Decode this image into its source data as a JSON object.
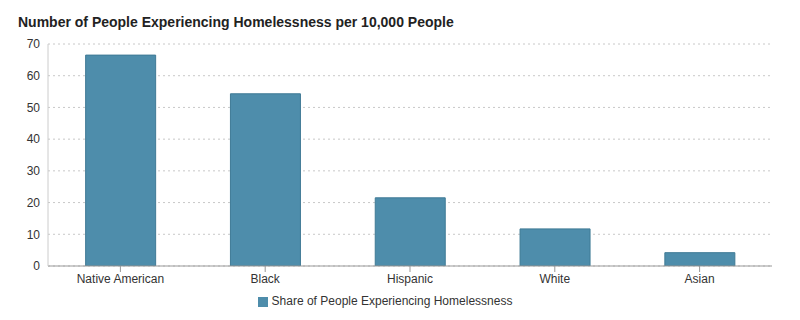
{
  "chart_data": {
    "type": "bar",
    "title": "Number of People Experiencing Homelessness per 10,000 People",
    "categories": [
      "Native American",
      "Black",
      "Hispanic",
      "White",
      "Asian"
    ],
    "series": [
      {
        "name": "Share of People Experiencing Homelessness",
        "color": "#4e8dab",
        "values": [
          66.5,
          54.3,
          21.5,
          11.7,
          4.2
        ]
      }
    ],
    "ylim": [
      0,
      70
    ],
    "yticks": [
      0,
      10,
      20,
      30,
      40,
      50,
      60,
      70
    ],
    "grid": true,
    "legend": "bottom"
  }
}
